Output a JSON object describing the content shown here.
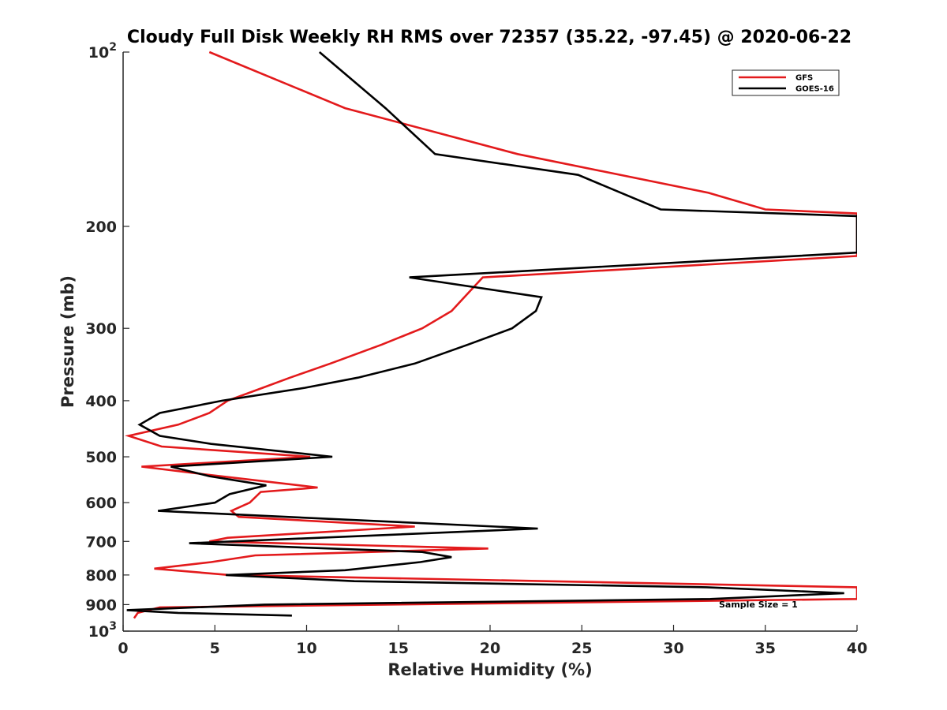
{
  "chart_data": {
    "type": "line",
    "title": "Cloudy Full Disk Weekly RH RMS over 72357 (35.22, -97.45) @ 2020-06-22",
    "xlabel": "Relative Humidity (%)",
    "ylabel": "Pressure (mb)",
    "xlim": [
      0,
      40
    ],
    "ylim": [
      1000,
      100
    ],
    "y_scale": "log",
    "grid": false,
    "legend_position": "top-right",
    "x_ticks": [
      0,
      5,
      10,
      15,
      20,
      25,
      30,
      35,
      40
    ],
    "x_tick_labels": [
      "0",
      "5",
      "10",
      "15",
      "20",
      "25",
      "30",
      "35",
      "40"
    ],
    "y_ticks": [
      100,
      200,
      300,
      400,
      500,
      600,
      700,
      800,
      900,
      1000
    ],
    "y_tick_labels": [
      {
        "base": "10",
        "exp": "2"
      },
      {
        "base": "200",
        "exp": ""
      },
      {
        "base": "300",
        "exp": ""
      },
      {
        "base": "400",
        "exp": ""
      },
      {
        "base": "500",
        "exp": ""
      },
      {
        "base": "600",
        "exp": ""
      },
      {
        "base": "700",
        "exp": ""
      },
      {
        "base": "800",
        "exp": ""
      },
      {
        "base": "900",
        "exp": ""
      },
      {
        "base": "10",
        "exp": "3"
      }
    ],
    "annotation": "Sample Size = 1",
    "series": [
      {
        "name": "GFS",
        "color": "#e31a1c",
        "points": [
          [
            4.7,
            100
          ],
          [
            12.1,
            125
          ],
          [
            21.5,
            150
          ],
          [
            31.9,
            175
          ],
          [
            35.0,
            187
          ],
          [
            40.0,
            190
          ],
          [
            40.0,
            225
          ],
          [
            19.6,
            245
          ],
          [
            17.9,
            280
          ],
          [
            16.3,
            300
          ],
          [
            14.1,
            320
          ],
          [
            11.3,
            345
          ],
          [
            9.1,
            365
          ],
          [
            7.6,
            380
          ],
          [
            5.7,
            400
          ],
          [
            4.7,
            420
          ],
          [
            3.0,
            440
          ],
          [
            0.3,
            460
          ],
          [
            2.1,
            480
          ],
          [
            10.2,
            500
          ],
          [
            1.0,
            520
          ],
          [
            4.2,
            535
          ],
          [
            10.6,
            565
          ],
          [
            7.5,
            575
          ],
          [
            6.9,
            600
          ],
          [
            5.9,
            620
          ],
          [
            6.3,
            635
          ],
          [
            15.9,
            660
          ],
          [
            5.7,
            690
          ],
          [
            4.7,
            700
          ],
          [
            19.9,
            720
          ],
          [
            7.2,
            740
          ],
          [
            4.8,
            760
          ],
          [
            1.7,
            780
          ],
          [
            5.8,
            800
          ],
          [
            40.0,
            840
          ],
          [
            40.0,
            880
          ],
          [
            2.0,
            910
          ],
          [
            0.8,
            930
          ],
          [
            0.6,
            950
          ]
        ]
      },
      {
        "name": "GOES-16",
        "color": "#000000",
        "points": [
          [
            10.7,
            100
          ],
          [
            14.3,
            125
          ],
          [
            17.0,
            150
          ],
          [
            24.8,
            163
          ],
          [
            29.3,
            187
          ],
          [
            40.0,
            192
          ],
          [
            40.0,
            222
          ],
          [
            15.6,
            245
          ],
          [
            22.8,
            265
          ],
          [
            22.5,
            280
          ],
          [
            21.2,
            300
          ],
          [
            18.8,
            320
          ],
          [
            15.9,
            345
          ],
          [
            12.8,
            365
          ],
          [
            9.9,
            380
          ],
          [
            5.4,
            400
          ],
          [
            2.0,
            420
          ],
          [
            0.9,
            440
          ],
          [
            2.0,
            460
          ],
          [
            4.8,
            475
          ],
          [
            11.4,
            500
          ],
          [
            2.6,
            520
          ],
          [
            4.7,
            540
          ],
          [
            7.8,
            560
          ],
          [
            5.8,
            580
          ],
          [
            5.0,
            600
          ],
          [
            1.9,
            620
          ],
          [
            22.6,
            665
          ],
          [
            3.6,
            705
          ],
          [
            16.3,
            730
          ],
          [
            17.9,
            745
          ],
          [
            16.2,
            760
          ],
          [
            12.1,
            785
          ],
          [
            5.6,
            800
          ],
          [
            12.6,
            820
          ],
          [
            31.8,
            840
          ],
          [
            39.3,
            860
          ],
          [
            32.0,
            880
          ],
          [
            7.7,
            900
          ],
          [
            0.2,
            920
          ],
          [
            3.0,
            930
          ],
          [
            9.2,
            940
          ]
        ]
      }
    ]
  }
}
